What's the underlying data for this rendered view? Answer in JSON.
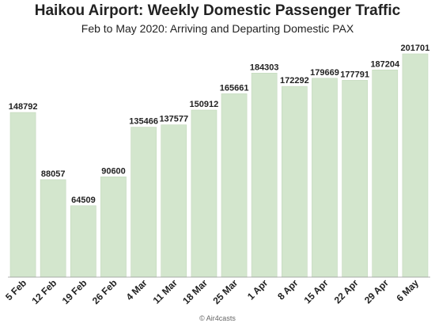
{
  "chart_data": {
    "type": "bar",
    "title": "Haikou Airport: Weekly Domestic Passenger Traffic",
    "subtitle": "Feb to May 2020: Arriving and Departing Domestic PAX",
    "categories": [
      "5 Feb",
      "12 Feb",
      "19 Feb",
      "26 Feb",
      "4 Mar",
      "11 Mar",
      "18 Mar",
      "25 Mar",
      "1 Apr",
      "8 Apr",
      "15 Apr",
      "22 Apr",
      "29 Apr",
      "6 May"
    ],
    "values": [
      148792,
      88057,
      64509,
      90600,
      135466,
      137577,
      150912,
      165661,
      184303,
      172292,
      179669,
      177791,
      187204,
      201701
    ],
    "xlabel": "",
    "ylabel": "",
    "ylim": [
      0,
      201701
    ],
    "grid": false,
    "legend": "none",
    "bar_color": "#d3e6cd"
  },
  "footer": "© Air4casts"
}
